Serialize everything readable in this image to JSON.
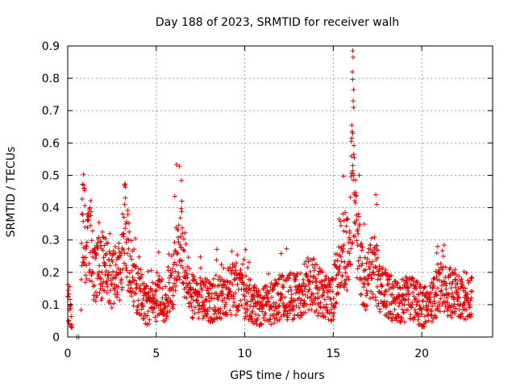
{
  "chart_data": {
    "type": "scatter",
    "title": "Day 188 of 2023, SRMTID for receiver walh",
    "xlabel": "GPS time / hours",
    "ylabel": "SRMTID / TECUs",
    "xlim": [
      0,
      24
    ],
    "ylim": [
      0,
      0.9
    ],
    "xticks": [
      0,
      5,
      10,
      15,
      20
    ],
    "yticks": [
      0,
      0.1,
      0.2,
      0.3,
      0.4,
      0.5,
      0.6,
      0.7,
      0.8,
      0.9
    ],
    "xtick_labels": [
      "0",
      "5",
      "10",
      "15",
      "20"
    ],
    "ytick_labels": [
      "0",
      "0.1",
      "0.2",
      "0.3",
      "0.4",
      "0.5",
      "0.6",
      "0.7",
      "0.8",
      "0.9"
    ],
    "grid": true,
    "marker": "+",
    "color": "#e00000",
    "series": [
      {
        "name": "SRMTID",
        "profile": [
          {
            "x": 0.0,
            "y": 0.11
          },
          {
            "x": 0.1,
            "y": 0.1
          },
          {
            "x": 0.3,
            "y": 0.0
          },
          {
            "x": 0.7,
            "y": 0.0
          },
          {
            "x": 0.8,
            "y": 0.3
          },
          {
            "x": 0.9,
            "y": 0.4
          },
          {
            "x": 1.0,
            "y": 0.24
          },
          {
            "x": 1.3,
            "y": 0.3
          },
          {
            "x": 1.5,
            "y": 0.2
          },
          {
            "x": 2.0,
            "y": 0.22
          },
          {
            "x": 2.5,
            "y": 0.17
          },
          {
            "x": 3.0,
            "y": 0.22
          },
          {
            "x": 3.2,
            "y": 0.36
          },
          {
            "x": 3.5,
            "y": 0.22
          },
          {
            "x": 4.0,
            "y": 0.14
          },
          {
            "x": 4.5,
            "y": 0.1
          },
          {
            "x": 5.0,
            "y": 0.12
          },
          {
            "x": 5.5,
            "y": 0.12
          },
          {
            "x": 6.0,
            "y": 0.18
          },
          {
            "x": 6.2,
            "y": 0.3
          },
          {
            "x": 6.5,
            "y": 0.26
          },
          {
            "x": 7.0,
            "y": 0.12
          },
          {
            "x": 8.0,
            "y": 0.11
          },
          {
            "x": 9.0,
            "y": 0.14
          },
          {
            "x": 9.5,
            "y": 0.15
          },
          {
            "x": 10.0,
            "y": 0.12
          },
          {
            "x": 11.0,
            "y": 0.09
          },
          {
            "x": 12.0,
            "y": 0.12
          },
          {
            "x": 13.0,
            "y": 0.13
          },
          {
            "x": 13.7,
            "y": 0.17
          },
          {
            "x": 14.5,
            "y": 0.12
          },
          {
            "x": 15.0,
            "y": 0.12
          },
          {
            "x": 15.4,
            "y": 0.28
          },
          {
            "x": 15.9,
            "y": 0.25
          },
          {
            "x": 16.1,
            "y": 0.52
          },
          {
            "x": 16.3,
            "y": 0.3
          },
          {
            "x": 16.8,
            "y": 0.16
          },
          {
            "x": 17.3,
            "y": 0.22
          },
          {
            "x": 17.8,
            "y": 0.14
          },
          {
            "x": 18.5,
            "y": 0.11
          },
          {
            "x": 19.5,
            "y": 0.12
          },
          {
            "x": 20.0,
            "y": 0.09
          },
          {
            "x": 20.5,
            "y": 0.1
          },
          {
            "x": 21.0,
            "y": 0.15
          },
          {
            "x": 21.5,
            "y": 0.14
          },
          {
            "x": 22.0,
            "y": 0.13
          },
          {
            "x": 22.8,
            "y": 0.13
          }
        ],
        "peaks": [
          {
            "x": 0.9,
            "y": 0.47
          },
          {
            "x": 0.92,
            "y": 0.46
          },
          {
            "x": 1.25,
            "y": 0.4
          },
          {
            "x": 3.2,
            "y": 0.47
          },
          {
            "x": 3.25,
            "y": 0.43
          },
          {
            "x": 6.05,
            "y": 0.435
          },
          {
            "x": 6.45,
            "y": 0.42
          },
          {
            "x": 10.05,
            "y": 0.27
          },
          {
            "x": 15.6,
            "y": 0.36
          },
          {
            "x": 16.1,
            "y": 0.885
          },
          {
            "x": 16.12,
            "y": 0.865
          },
          {
            "x": 16.08,
            "y": 0.82
          },
          {
            "x": 16.15,
            "y": 0.765
          },
          {
            "x": 16.12,
            "y": 0.73
          },
          {
            "x": 16.15,
            "y": 0.71
          },
          {
            "x": 16.05,
            "y": 0.655
          },
          {
            "x": 16.1,
            "y": 0.63
          },
          {
            "x": 16.02,
            "y": 0.605
          },
          {
            "x": 16.1,
            "y": 0.53
          },
          {
            "x": 16.15,
            "y": 0.5
          },
          {
            "x": 16.2,
            "y": 0.44
          },
          {
            "x": 17.4,
            "y": 0.44
          },
          {
            "x": 17.45,
            "y": 0.41
          },
          {
            "x": 20.9,
            "y": 0.28
          },
          {
            "x": 20.85,
            "y": 0.26
          },
          {
            "x": 20.9,
            "y": 0.225
          }
        ]
      }
    ]
  }
}
